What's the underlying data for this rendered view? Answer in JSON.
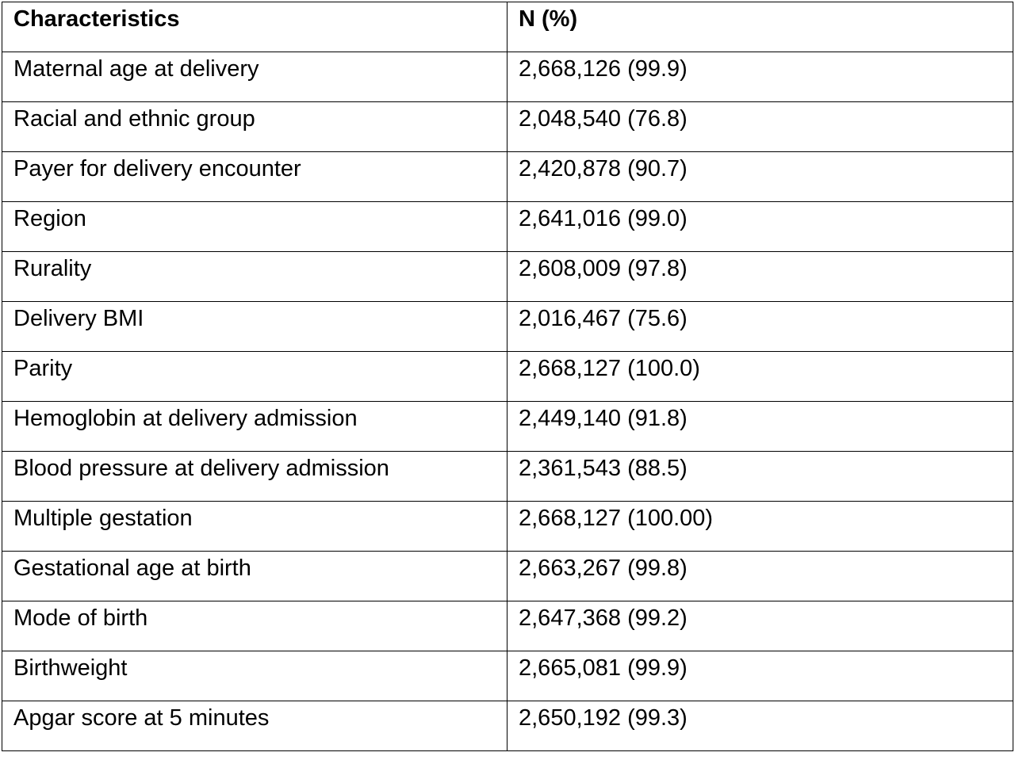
{
  "table": {
    "headers": [
      "Characteristics",
      "N (%)"
    ],
    "rows": [
      [
        "Maternal age at delivery",
        "2,668,126 (99.9)"
      ],
      [
        "Racial and ethnic group",
        "2,048,540 (76.8)"
      ],
      [
        "Payer for delivery encounter",
        "2,420,878 (90.7)"
      ],
      [
        "Region",
        "2,641,016 (99.0)"
      ],
      [
        "Rurality",
        "2,608,009 (97.8)"
      ],
      [
        "Delivery BMI",
        "2,016,467 (75.6)"
      ],
      [
        "Parity",
        "2,668,127 (100.0)"
      ],
      [
        "Hemoglobin at delivery admission",
        "2,449,140 (91.8)"
      ],
      [
        "Blood pressure at delivery admission",
        "2,361,543 (88.5)"
      ],
      [
        "Multiple gestation",
        "2,668,127 (100.00)"
      ],
      [
        "Gestational age at birth",
        "2,663,267 (99.8)"
      ],
      [
        "Mode of birth",
        "2,647,368 (99.2)"
      ],
      [
        "Birthweight",
        "2,665,081 (99.9)"
      ],
      [
        "Apgar score at 5 minutes",
        "2,650,192 (99.3)"
      ]
    ]
  }
}
